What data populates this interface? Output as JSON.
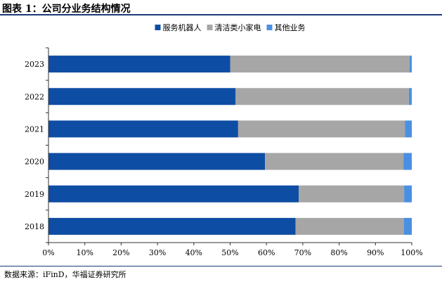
{
  "figure": {
    "title": "图表 1：公司分业务结构情况",
    "source_label": "数据来源：",
    "source_text": "iFinD，华福证券研究所"
  },
  "chart_data": {
    "type": "bar",
    "orientation": "horizontal",
    "stacked": true,
    "percent": true,
    "title": "",
    "xlabel": "",
    "ylabel": "",
    "categories": [
      "2023",
      "2022",
      "2021",
      "2020",
      "2019",
      "2018"
    ],
    "series": [
      {
        "name": "服务机器人",
        "color": "#0e4da4",
        "values": [
          50.0,
          51.5,
          52.2,
          59.6,
          68.9,
          68.0
        ]
      },
      {
        "name": "清洁类小家电",
        "color": "#a6a6a6",
        "values": [
          49.4,
          47.7,
          45.9,
          38.1,
          29.0,
          29.8
        ]
      },
      {
        "name": "其他业务",
        "color": "#4a90e2",
        "values": [
          0.6,
          0.8,
          1.9,
          2.3,
          2.1,
          2.2
        ]
      }
    ],
    "xlim": [
      0,
      100
    ],
    "xticks": [
      "0%",
      "10%",
      "20%",
      "30%",
      "40%",
      "50%",
      "60%",
      "70%",
      "80%",
      "90%",
      "100%"
    ],
    "grid": false,
    "legend_position": "top-center"
  }
}
